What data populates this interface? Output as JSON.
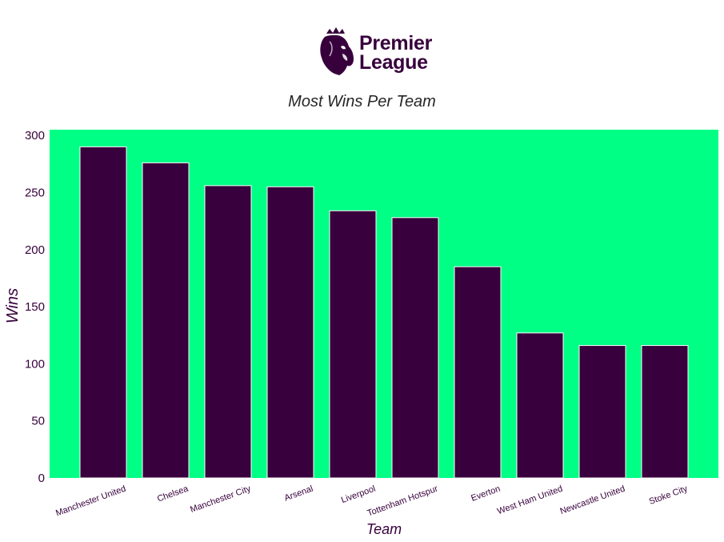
{
  "logo": {
    "line1": "Premier",
    "line2": "League"
  },
  "chart_data": {
    "type": "bar",
    "title": "Most Wins Per Team",
    "xlabel": "Team",
    "ylabel": "Wins",
    "categories": [
      "Manchester United",
      "Chelsea",
      "Manchester City",
      "Arsenal",
      "Liverpool",
      "Tottenham Hotspur",
      "Everton",
      "West Ham United",
      "Newcastle United",
      "Stoke City"
    ],
    "values": [
      290,
      276,
      256,
      255,
      234,
      228,
      185,
      127,
      116,
      116
    ],
    "ylim": [
      0,
      305
    ],
    "yticks": [
      0,
      50,
      100,
      150,
      200,
      250,
      300
    ],
    "grid": false,
    "legend": "none",
    "colors": {
      "background": "#00ff85",
      "bar": "#38003c",
      "bar_edge": "#ffffff",
      "label": "#37003c"
    }
  }
}
